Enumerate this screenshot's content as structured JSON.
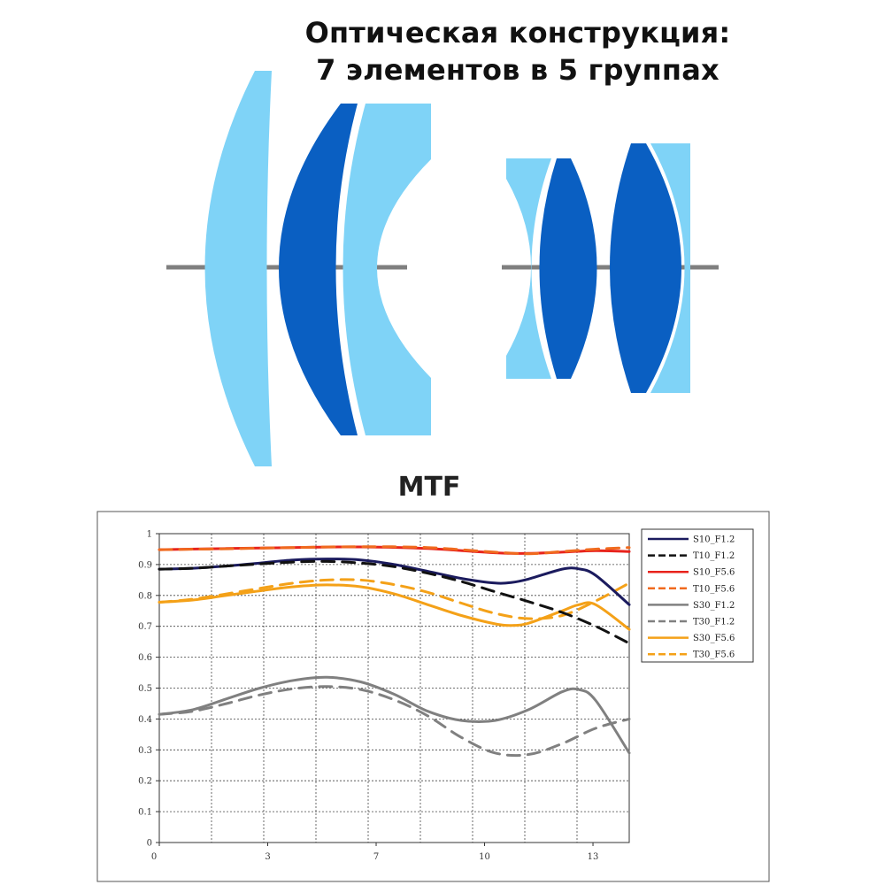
{
  "header": {
    "title_line1": "Оптическая конструкция:",
    "title_line2": "7 элементов в 5 группах"
  },
  "lens_diagram": {
    "colors": {
      "light_element": "#7fd3f7",
      "dark_element": "#0a5fc2",
      "optical_axis": "#7f7f7f"
    }
  },
  "chart_data": {
    "type": "line",
    "title": "MTF",
    "xlim": [
      0,
      14
    ],
    "ylim": [
      0,
      1
    ],
    "x_ticks": [
      "0",
      "3",
      "7",
      "10",
      "13"
    ],
    "x_tick_values": [
      0,
      3.23,
      6.46,
      9.69,
      12.92
    ],
    "y_ticks": [
      "0",
      "0.1",
      "0.2",
      "0.3",
      "0.4",
      "0.5",
      "0.6",
      "0.7",
      "0.8",
      "0.9",
      "1"
    ],
    "y_tick_values": [
      0,
      0.1,
      0.2,
      0.3,
      0.4,
      0.5,
      0.6,
      0.7,
      0.8,
      0.9,
      1.0
    ],
    "grid": true,
    "legend_position": "right",
    "series": [
      {
        "name": "S10_F1.2",
        "color": "#1b1b5e",
        "dash": false,
        "x": [
          0,
          1,
          2,
          3,
          4,
          5,
          6,
          7,
          8,
          9,
          10,
          10.5,
          11,
          12,
          12.5,
          13,
          14
        ],
        "y": [
          0.885,
          0.888,
          0.895,
          0.905,
          0.915,
          0.918,
          0.915,
          0.9,
          0.878,
          0.855,
          0.84,
          0.842,
          0.853,
          0.885,
          0.886,
          0.865,
          0.77
        ]
      },
      {
        "name": "T10_F1.2",
        "color": "#111111",
        "dash": true,
        "x": [
          0,
          1,
          2,
          3,
          4,
          5,
          6,
          7,
          8,
          9,
          10,
          11,
          12,
          13,
          14
        ],
        "y": [
          0.885,
          0.888,
          0.895,
          0.902,
          0.908,
          0.91,
          0.905,
          0.893,
          0.872,
          0.845,
          0.812,
          0.78,
          0.745,
          0.7,
          0.645
        ]
      },
      {
        "name": "S10_F5.6",
        "color": "#e8231c",
        "dash": false,
        "x": [
          0,
          2,
          4,
          6,
          8,
          10,
          11,
          12,
          13,
          14
        ],
        "y": [
          0.948,
          0.952,
          0.955,
          0.957,
          0.952,
          0.938,
          0.936,
          0.94,
          0.945,
          0.942
        ]
      },
      {
        "name": "T10_F5.6",
        "color": "#f06a1e",
        "dash": true,
        "x": [
          0,
          2,
          4,
          6,
          8,
          10,
          11,
          12,
          13,
          14
        ],
        "y": [
          0.948,
          0.951,
          0.955,
          0.958,
          0.955,
          0.94,
          0.935,
          0.942,
          0.95,
          0.955
        ]
      },
      {
        "name": "S30_F1.2",
        "color": "#808080",
        "dash": false,
        "x": [
          0,
          1,
          2,
          3,
          4,
          5,
          6,
          7,
          8,
          9,
          10,
          11,
          12,
          12.5,
          13,
          14
        ],
        "y": [
          0.415,
          0.43,
          0.465,
          0.5,
          0.525,
          0.535,
          0.52,
          0.48,
          0.425,
          0.395,
          0.395,
          0.43,
          0.488,
          0.495,
          0.46,
          0.29
        ]
      },
      {
        "name": "T30_F1.2",
        "color": "#808080",
        "dash": true,
        "x": [
          0,
          1,
          2,
          3,
          4,
          5,
          6,
          7,
          8,
          9,
          10,
          11,
          12,
          13,
          14
        ],
        "y": [
          0.415,
          0.425,
          0.45,
          0.478,
          0.498,
          0.505,
          0.495,
          0.462,
          0.41,
          0.34,
          0.29,
          0.285,
          0.32,
          0.37,
          0.4
        ]
      },
      {
        "name": "S30_F5.6",
        "color": "#f4a118",
        "dash": false,
        "x": [
          0,
          1,
          2,
          3,
          4,
          5,
          6,
          7,
          8,
          9,
          10,
          10.5,
          11,
          12,
          12.5,
          13,
          14
        ],
        "y": [
          0.778,
          0.785,
          0.8,
          0.815,
          0.828,
          0.834,
          0.828,
          0.805,
          0.77,
          0.735,
          0.708,
          0.703,
          0.71,
          0.75,
          0.77,
          0.77,
          0.69
        ]
      },
      {
        "name": "T30_F5.6",
        "color": "#f4a118",
        "dash": true,
        "x": [
          0,
          1,
          2,
          3,
          4,
          5,
          6,
          7,
          8,
          9,
          10,
          11,
          12,
          13,
          14
        ],
        "y": [
          0.778,
          0.788,
          0.805,
          0.823,
          0.84,
          0.85,
          0.85,
          0.835,
          0.81,
          0.775,
          0.742,
          0.725,
          0.735,
          0.782,
          0.84
        ]
      }
    ]
  }
}
